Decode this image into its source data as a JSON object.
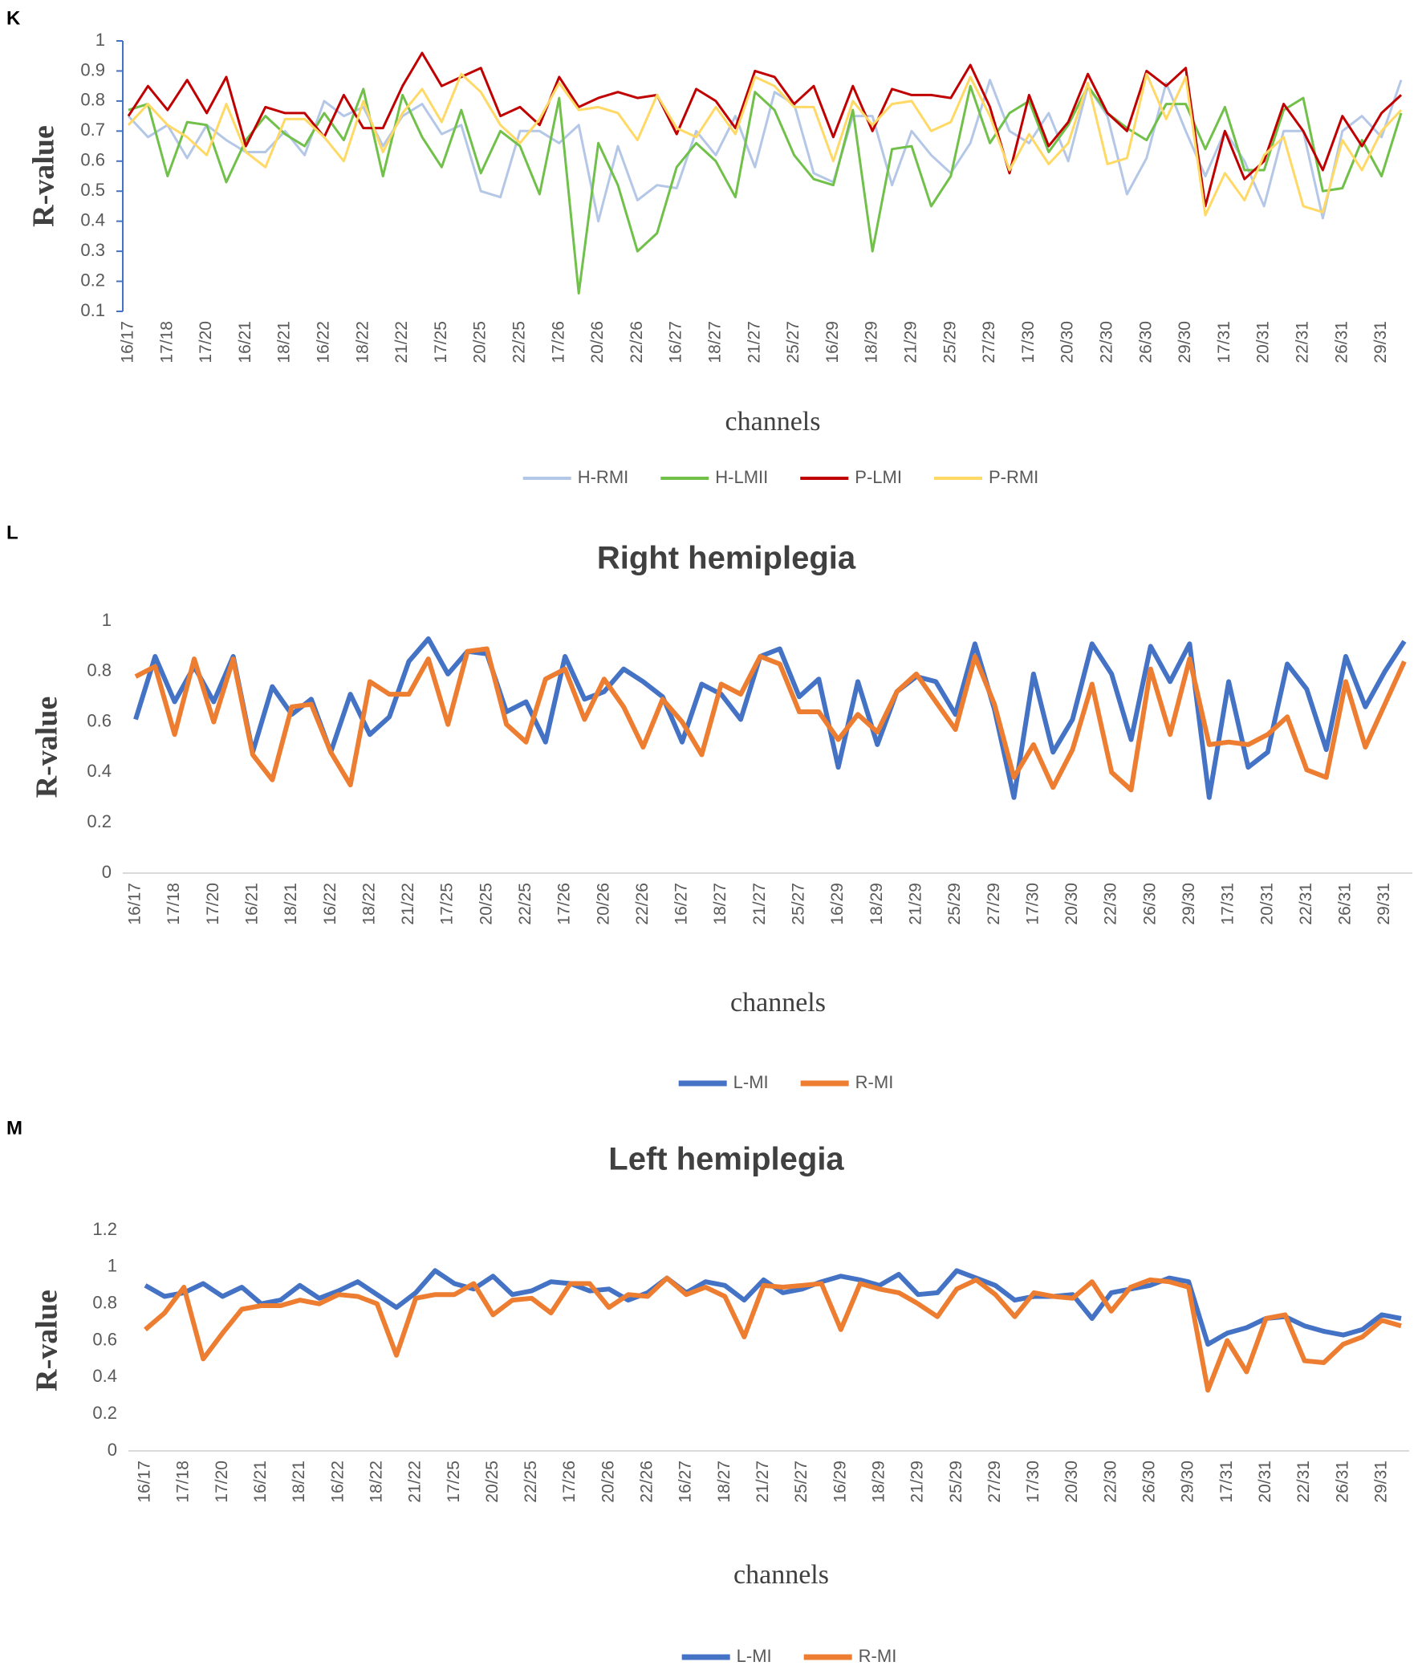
{
  "chart_data": [
    {
      "type": "line",
      "panel": "K",
      "ylabel": "R-value",
      "xlabel": "channels",
      "categories": [
        "16/17",
        null,
        "17/18",
        null,
        "17/20",
        null,
        "16/21",
        null,
        "18/21",
        null,
        "16/22",
        null,
        "18/22",
        null,
        "21/22",
        null,
        "17/25",
        null,
        "20/25",
        null,
        "22/25",
        null,
        "17/26",
        null,
        "20/26",
        null,
        "22/26",
        null,
        "16/27",
        null,
        "18/27",
        null,
        "21/27",
        null,
        "25/27",
        null,
        "16/29",
        null,
        "18/29",
        null,
        "21/29",
        null,
        "25/29",
        null,
        "27/29",
        null,
        "17/30",
        null,
        "20/30",
        null,
        "22/30",
        null,
        "26/30",
        null,
        "29/30",
        null,
        "17/31",
        null,
        "20/31",
        null,
        "22/31",
        null,
        "26/31",
        null,
        "29/31",
        null
      ],
      "ylim": [
        0.1,
        1
      ],
      "yticks": [
        0.1,
        0.2,
        0.3,
        0.4,
        0.5,
        0.6,
        0.7,
        0.8,
        0.9,
        1
      ],
      "grid": false,
      "series": [
        {
          "name": "H-RMI",
          "color": "#b4c7e7",
          "values": [
            0.75,
            0.68,
            0.72,
            0.61,
            0.72,
            0.67,
            0.63,
            0.63,
            0.7,
            0.62,
            0.8,
            0.75,
            0.78,
            0.65,
            0.75,
            0.79,
            0.69,
            0.72,
            0.5,
            0.48,
            0.7,
            0.7,
            0.66,
            0.72,
            0.4,
            0.65,
            0.47,
            0.52,
            0.51,
            0.7,
            0.62,
            0.75,
            0.58,
            0.83,
            0.79,
            0.56,
            0.53,
            0.75,
            0.75,
            0.52,
            0.7,
            0.62,
            0.56,
            0.66,
            0.87,
            0.7,
            0.66,
            0.76,
            0.6,
            0.85,
            0.75,
            0.49,
            0.61,
            0.86,
            0.7,
            0.55,
            0.7,
            0.6,
            0.45,
            0.7,
            0.7,
            0.41,
            0.7,
            0.75,
            0.68,
            0.87
          ]
        },
        {
          "name": "H-LMII",
          "color": "#70c04a",
          "values": [
            0.77,
            0.79,
            0.55,
            0.73,
            0.72,
            0.53,
            0.67,
            0.75,
            0.69,
            0.65,
            0.76,
            0.67,
            0.84,
            0.55,
            0.82,
            0.68,
            0.58,
            0.77,
            0.56,
            0.7,
            0.65,
            0.49,
            0.81,
            0.16,
            0.66,
            0.52,
            0.3,
            0.36,
            0.58,
            0.66,
            0.6,
            0.48,
            0.83,
            0.77,
            0.62,
            0.54,
            0.52,
            0.77,
            0.3,
            0.64,
            0.65,
            0.45,
            0.55,
            0.85,
            0.66,
            0.76,
            0.8,
            0.63,
            0.72,
            0.85,
            0.76,
            0.71,
            0.67,
            0.79,
            0.79,
            0.64,
            0.78,
            0.57,
            0.57,
            0.77,
            0.81,
            0.5,
            0.51,
            0.67,
            0.55,
            0.76
          ]
        },
        {
          "name": "P-LMI",
          "color": "#c00000",
          "values": [
            0.75,
            0.85,
            0.77,
            0.87,
            0.76,
            0.88,
            0.65,
            0.78,
            0.76,
            0.76,
            0.68,
            0.82,
            0.71,
            0.71,
            0.85,
            0.96,
            0.85,
            0.88,
            0.91,
            0.75,
            0.78,
            0.72,
            0.88,
            0.78,
            0.81,
            0.83,
            0.81,
            0.82,
            0.69,
            0.84,
            0.8,
            0.71,
            0.9,
            0.88,
            0.79,
            0.85,
            0.68,
            0.85,
            0.7,
            0.84,
            0.82,
            0.82,
            0.81,
            0.92,
            0.78,
            0.56,
            0.82,
            0.65,
            0.73,
            0.89,
            0.76,
            0.7,
            0.9,
            0.85,
            0.91,
            0.45,
            0.7,
            0.54,
            0.6,
            0.79,
            0.7,
            0.57,
            0.75,
            0.65,
            0.76,
            0.82
          ]
        },
        {
          "name": "P-RMI",
          "color": "#ffd966",
          "values": [
            0.72,
            0.79,
            0.72,
            0.68,
            0.62,
            0.79,
            0.63,
            0.58,
            0.74,
            0.74,
            0.68,
            0.6,
            0.8,
            0.63,
            0.76,
            0.84,
            0.73,
            0.89,
            0.83,
            0.72,
            0.66,
            0.74,
            0.86,
            0.77,
            0.78,
            0.76,
            0.67,
            0.82,
            0.71,
            0.68,
            0.78,
            0.69,
            0.88,
            0.85,
            0.78,
            0.78,
            0.6,
            0.8,
            0.72,
            0.79,
            0.8,
            0.7,
            0.73,
            0.88,
            0.75,
            0.57,
            0.69,
            0.59,
            0.66,
            0.86,
            0.59,
            0.61,
            0.89,
            0.74,
            0.88,
            0.42,
            0.56,
            0.47,
            0.62,
            0.68,
            0.45,
            0.43,
            0.67,
            0.57,
            0.7,
            0.77
          ]
        }
      ]
    },
    {
      "type": "line",
      "panel": "L",
      "title": "Right hemiplegia",
      "ylabel": "R-value",
      "xlabel": "channels",
      "categories": [
        "16/17",
        null,
        "17/18",
        null,
        "17/20",
        null,
        "16/21",
        null,
        "18/21",
        null,
        "16/22",
        null,
        "18/22",
        null,
        "21/22",
        null,
        "17/25",
        null,
        "20/25",
        null,
        "22/25",
        null,
        "17/26",
        null,
        "20/26",
        null,
        "22/26",
        null,
        "16/27",
        null,
        "18/27",
        null,
        "21/27",
        null,
        "25/27",
        null,
        "16/29",
        null,
        "18/29",
        null,
        "21/29",
        null,
        "25/29",
        null,
        "27/29",
        null,
        "17/30",
        null,
        "20/30",
        null,
        "22/30",
        null,
        "26/30",
        null,
        "29/30",
        null,
        "17/31",
        null,
        "20/31",
        null,
        "22/31",
        null,
        "26/31",
        null,
        "29/31",
        null
      ],
      "ylim": [
        0,
        1
      ],
      "yticks": [
        0,
        0.2,
        0.4,
        0.6,
        0.8,
        1
      ],
      "grid": false,
      "series": [
        {
          "name": "L-MI",
          "color": "#4472c4",
          "values": [
            0.61,
            0.86,
            0.68,
            0.82,
            0.68,
            0.86,
            0.48,
            0.74,
            0.63,
            0.69,
            0.48,
            0.71,
            0.55,
            0.62,
            0.84,
            0.93,
            0.79,
            0.88,
            0.87,
            0.64,
            0.68,
            0.52,
            0.86,
            0.69,
            0.72,
            0.81,
            0.76,
            0.7,
            0.52,
            0.75,
            0.71,
            0.61,
            0.86,
            0.89,
            0.7,
            0.77,
            0.42,
            0.76,
            0.51,
            0.72,
            0.78,
            0.76,
            0.63,
            0.91,
            0.65,
            0.3,
            0.79,
            0.48,
            0.61,
            0.91,
            0.79,
            0.53,
            0.9,
            0.76,
            0.91,
            0.3,
            0.76,
            0.42,
            0.48,
            0.83,
            0.73,
            0.49,
            0.86,
            0.66,
            0.8,
            0.92
          ]
        },
        {
          "name": "R-MI",
          "color": "#ed7d31",
          "values": [
            0.78,
            0.82,
            0.55,
            0.85,
            0.6,
            0.85,
            0.47,
            0.37,
            0.66,
            0.67,
            0.48,
            0.35,
            0.76,
            0.71,
            0.71,
            0.85,
            0.59,
            0.88,
            0.89,
            0.59,
            0.52,
            0.77,
            0.81,
            0.61,
            0.77,
            0.66,
            0.5,
            0.69,
            0.6,
            0.47,
            0.75,
            0.71,
            0.86,
            0.83,
            0.64,
            0.64,
            0.53,
            0.63,
            0.56,
            0.72,
            0.79,
            0.68,
            0.57,
            0.86,
            0.67,
            0.38,
            0.51,
            0.34,
            0.49,
            0.75,
            0.4,
            0.33,
            0.81,
            0.55,
            0.85,
            0.51,
            0.52,
            0.51,
            0.55,
            0.62,
            0.41,
            0.38,
            0.76,
            0.5,
            0.67,
            0.84
          ]
        }
      ]
    },
    {
      "type": "line",
      "panel": "M",
      "title": "Left hemiplegia",
      "ylabel": "R-value",
      "xlabel": "channels",
      "categories": [
        "16/17",
        null,
        "17/18",
        null,
        "17/20",
        null,
        "16/21",
        null,
        "18/21",
        null,
        "16/22",
        null,
        "18/22",
        null,
        "21/22",
        null,
        "17/25",
        null,
        "20/25",
        null,
        "22/25",
        null,
        "17/26",
        null,
        "20/26",
        null,
        "22/26",
        null,
        "16/27",
        null,
        "18/27",
        null,
        "21/27",
        null,
        "25/27",
        null,
        "16/29",
        null,
        "18/29",
        null,
        "21/29",
        null,
        "25/29",
        null,
        "27/29",
        null,
        "17/30",
        null,
        "20/30",
        null,
        "22/30",
        null,
        "26/30",
        null,
        "29/30",
        null,
        "17/31",
        null,
        "20/31",
        null,
        "22/31",
        null,
        "26/31",
        null,
        "29/31",
        null
      ],
      "ylim": [
        0,
        1.2
      ],
      "yticks": [
        0,
        0.2,
        0.4,
        0.6,
        0.8,
        1,
        1.2
      ],
      "grid": false,
      "series": [
        {
          "name": "L-MI",
          "color": "#4472c4",
          "values": [
            0.9,
            0.84,
            0.86,
            0.91,
            0.84,
            0.89,
            0.8,
            0.82,
            0.9,
            0.83,
            0.87,
            0.92,
            0.85,
            0.78,
            0.86,
            0.98,
            0.91,
            0.88,
            0.95,
            0.85,
            0.87,
            0.92,
            0.91,
            0.87,
            0.88,
            0.82,
            0.86,
            0.94,
            0.86,
            0.92,
            0.9,
            0.82,
            0.93,
            0.86,
            0.88,
            0.92,
            0.95,
            0.93,
            0.9,
            0.96,
            0.85,
            0.86,
            0.98,
            0.94,
            0.9,
            0.82,
            0.84,
            0.84,
            0.85,
            0.72,
            0.86,
            0.88,
            0.9,
            0.94,
            0.92,
            0.58,
            0.64,
            0.67,
            0.72,
            0.73,
            0.68,
            0.65,
            0.63,
            0.66,
            0.74,
            0.72
          ]
        },
        {
          "name": "R-MI",
          "color": "#ed7d31",
          "values": [
            0.66,
            0.75,
            0.89,
            0.5,
            0.64,
            0.77,
            0.79,
            0.79,
            0.82,
            0.8,
            0.85,
            0.84,
            0.8,
            0.52,
            0.83,
            0.85,
            0.85,
            0.91,
            0.74,
            0.82,
            0.83,
            0.75,
            0.91,
            0.91,
            0.78,
            0.85,
            0.84,
            0.94,
            0.85,
            0.89,
            0.84,
            0.62,
            0.9,
            0.89,
            0.9,
            0.91,
            0.66,
            0.91,
            0.88,
            0.86,
            0.8,
            0.73,
            0.88,
            0.93,
            0.85,
            0.73,
            0.86,
            0.84,
            0.83,
            0.92,
            0.76,
            0.89,
            0.93,
            0.92,
            0.89,
            0.33,
            0.6,
            0.43,
            0.72,
            0.74,
            0.49,
            0.48,
            0.58,
            0.62,
            0.71,
            0.68
          ]
        }
      ]
    }
  ]
}
